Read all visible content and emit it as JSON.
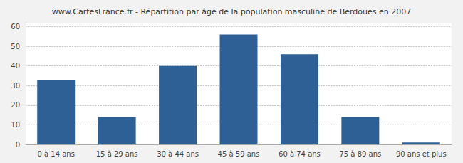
{
  "chart_data": {
    "type": "bar",
    "title": "www.CartesFrance.fr - Répartition par âge de la population masculine de Berdoues en 2007",
    "categories": [
      "0 à 14 ans",
      "15 à 29 ans",
      "30 à 44 ans",
      "45 à 59 ans",
      "60 à 74 ans",
      "75 à 89 ans",
      "90 ans et plus"
    ],
    "values": [
      33,
      14,
      40,
      56,
      46,
      14,
      1
    ],
    "color": "#2e6096",
    "ylim": [
      0,
      62
    ],
    "yticks": [
      0,
      10,
      20,
      30,
      40,
      50,
      60
    ],
    "grid": true
  }
}
